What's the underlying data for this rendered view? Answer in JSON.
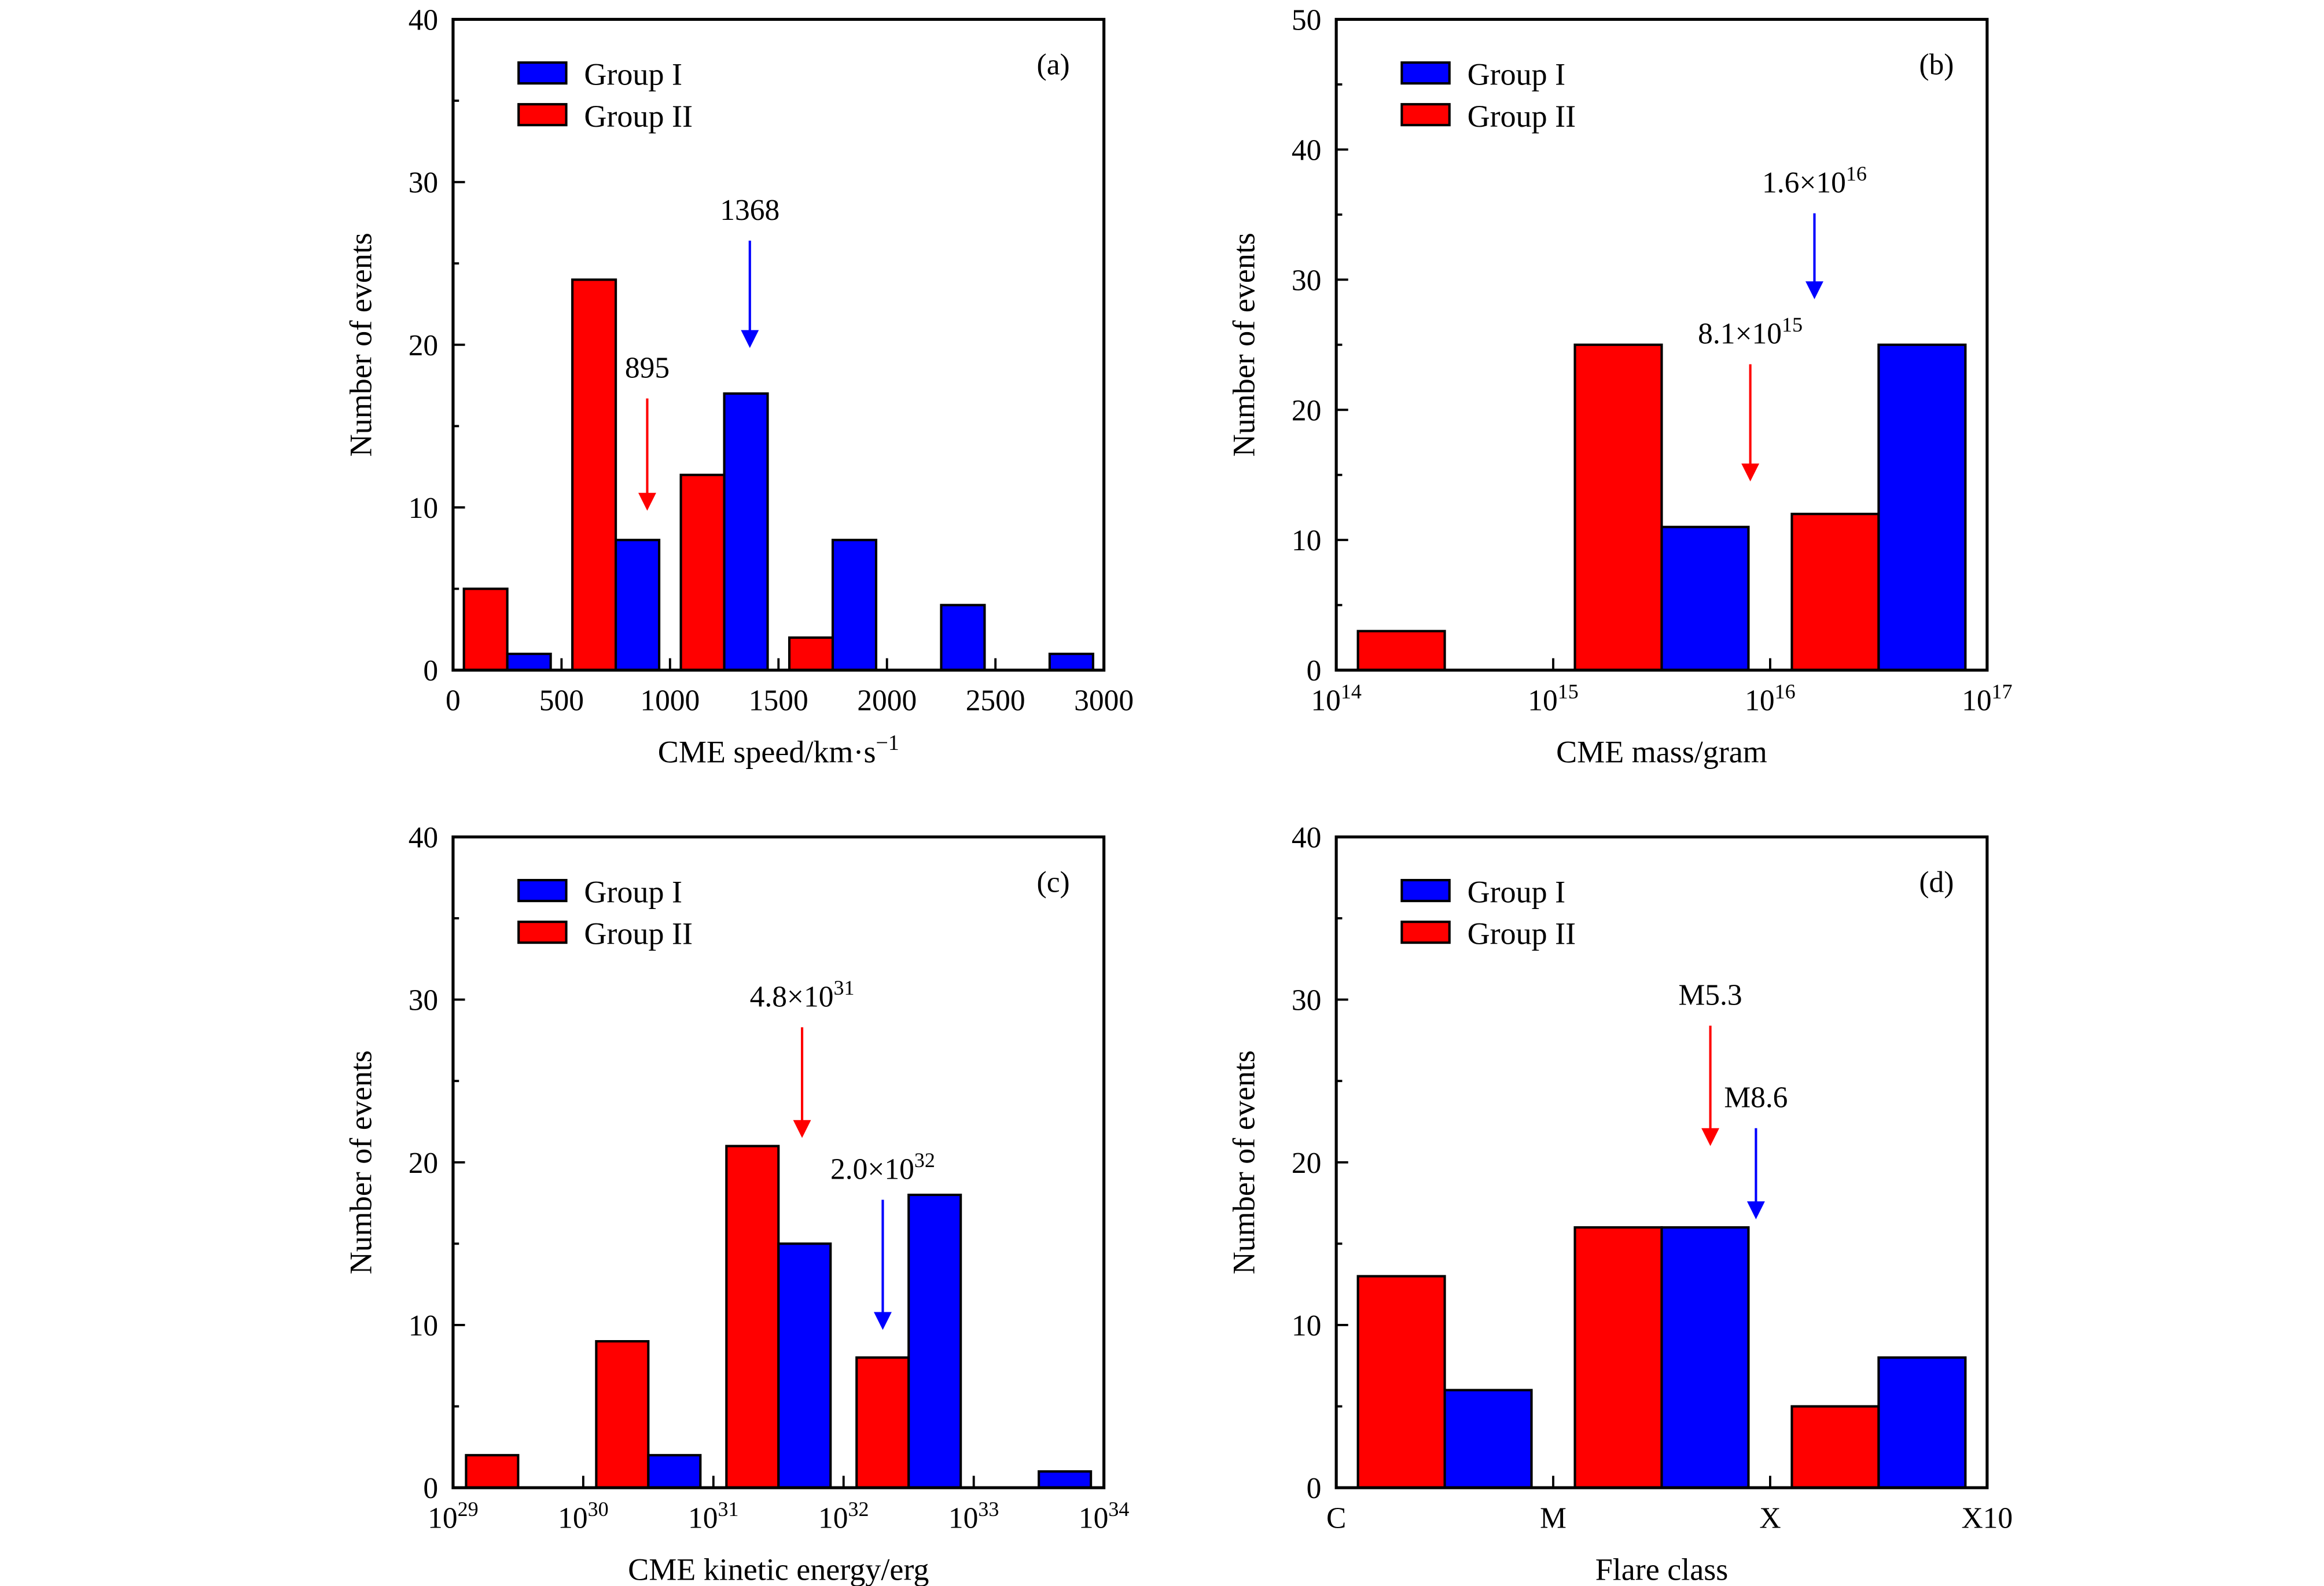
{
  "colors": {
    "group_i": "#0000ff",
    "group_ii": "#ff0000",
    "frame": "#000000"
  },
  "legend": {
    "group_i": "Group I",
    "group_ii": "Group II"
  },
  "chart_data": [
    {
      "panel": "(a)",
      "type": "bar",
      "xscale": "linear",
      "xlabel": "CME speed/km·s",
      "xlabel_sup": "−1",
      "ylabel": "Number of events",
      "xlim": [
        0,
        3000
      ],
      "ylim": [
        0,
        40
      ],
      "y_ticks": [
        0,
        10,
        20,
        30,
        40
      ],
      "y_minor": 5,
      "x_ticks": [
        {
          "value": 0,
          "label": "0"
        },
        {
          "value": 500,
          "label": "500"
        },
        {
          "value": 1000,
          "label": "1000"
        },
        {
          "value": 1500,
          "label": "1500"
        },
        {
          "value": 2000,
          "label": "2000"
        },
        {
          "value": 2500,
          "label": "2500"
        },
        {
          "value": 3000,
          "label": "3000"
        }
      ],
      "bins": [
        {
          "from": 0,
          "to": 500,
          "group_ii": 5,
          "group_i": 1
        },
        {
          "from": 500,
          "to": 1000,
          "group_ii": 24,
          "group_i": 8
        },
        {
          "from": 1000,
          "to": 1500,
          "group_ii": 12,
          "group_i": 17
        },
        {
          "from": 1500,
          "to": 2000,
          "group_ii": 2,
          "group_i": 8
        },
        {
          "from": 2000,
          "to": 2500,
          "group_ii": 0,
          "group_i": 4
        },
        {
          "from": 2500,
          "to": 3000,
          "group_ii": 0,
          "group_i": 1
        }
      ],
      "annotations": [
        {
          "group": "group_ii",
          "x": 895,
          "label": "895",
          "label_sup": "",
          "tip": 9.8,
          "tail": 16.7
        },
        {
          "group": "group_i",
          "x": 1368,
          "label": "1368",
          "label_sup": "",
          "tip": 19.8,
          "tail": 26.4
        }
      ]
    },
    {
      "panel": "(b)",
      "type": "bar",
      "xscale": "log",
      "xlabel": "CME mass/gram",
      "xlabel_sup": "",
      "ylabel": "Number of events",
      "xlim": [
        100000000000000.0,
        1e+17
      ],
      "ylim": [
        0,
        50
      ],
      "y_ticks": [
        0,
        10,
        20,
        30,
        40,
        50
      ],
      "y_minor": 5,
      "x_ticks": [
        {
          "value": 100000000000000.0,
          "label": "10",
          "sup": "14"
        },
        {
          "value": 1000000000000000.0,
          "label": "10",
          "sup": "15"
        },
        {
          "value": 1e+16,
          "label": "10",
          "sup": "16"
        },
        {
          "value": 1e+17,
          "label": "10",
          "sup": "17"
        }
      ],
      "bins": [
        {
          "from": 100000000000000.0,
          "to": 1000000000000000.0,
          "group_ii": 3,
          "group_i": 0
        },
        {
          "from": 1000000000000000.0,
          "to": 1e+16,
          "group_ii": 25,
          "group_i": 11
        },
        {
          "from": 1e+16,
          "to": 1e+17,
          "group_ii": 12,
          "group_i": 25
        }
      ],
      "annotations": [
        {
          "group": "group_i",
          "x": 1.6e+16,
          "label": "1.6×10",
          "label_sup": "16",
          "tip": 28.5,
          "tail": 35.1
        },
        {
          "group": "group_ii",
          "x": 8100000000000000.0,
          "label": "8.1×10",
          "label_sup": "15",
          "tip": 14.5,
          "tail": 23.5
        }
      ]
    },
    {
      "panel": "(c)",
      "type": "bar",
      "xscale": "log",
      "xlabel": "CME kinetic energy/erg",
      "xlabel_sup": "",
      "ylabel": "Number of events",
      "xlim": [
        1e+29,
        1e+34
      ],
      "ylim": [
        0,
        40
      ],
      "y_ticks": [
        0,
        10,
        20,
        30,
        40
      ],
      "y_minor": 5,
      "x_ticks": [
        {
          "value": 1e+29,
          "label": "10",
          "sup": "29"
        },
        {
          "value": 1e+30,
          "label": "10",
          "sup": "30"
        },
        {
          "value": 1e+31,
          "label": "10",
          "sup": "31"
        },
        {
          "value": 1e+32,
          "label": "10",
          "sup": "32"
        },
        {
          "value": 1e+33,
          "label": "10",
          "sup": "33"
        },
        {
          "value": 1e+34,
          "label": "10",
          "sup": "34"
        }
      ],
      "bins": [
        {
          "from": 1e+29,
          "to": 1e+30,
          "group_ii": 2,
          "group_i": 0
        },
        {
          "from": 1e+30,
          "to": 1e+31,
          "group_ii": 9,
          "group_i": 2
        },
        {
          "from": 1e+31,
          "to": 1e+32,
          "group_ii": 21,
          "group_i": 15
        },
        {
          "from": 1e+32,
          "to": 1e+33,
          "group_ii": 8,
          "group_i": 18
        },
        {
          "from": 1e+33,
          "to": 1e+34,
          "group_ii": 0,
          "group_i": 1
        }
      ],
      "annotations": [
        {
          "group": "group_ii",
          "x": 4.8e+31,
          "label": "4.8×10",
          "label_sup": "31",
          "tip": 21.5,
          "tail": 28.3
        },
        {
          "group": "group_i",
          "x": 2e+32,
          "label": "2.0×10",
          "label_sup": "32",
          "tip": 9.7,
          "tail": 17.7
        }
      ]
    },
    {
      "panel": "(d)",
      "type": "bar",
      "xscale": "flare-class",
      "xlabel": "Flare class",
      "xlabel_sup": "",
      "ylabel": "Number of events",
      "xlim": [
        "C",
        "X10"
      ],
      "ylim": [
        0,
        40
      ],
      "y_ticks": [
        0,
        10,
        20,
        30,
        40
      ],
      "y_minor": 5,
      "x_ticks": [
        {
          "value": "C",
          "label": "C"
        },
        {
          "value": "M",
          "label": "M"
        },
        {
          "value": "X",
          "label": "X"
        },
        {
          "value": "X10",
          "label": "X10"
        }
      ],
      "bins": [
        {
          "from": "C",
          "to": "M",
          "group_ii": 13,
          "group_i": 6
        },
        {
          "from": "M",
          "to": "X",
          "group_ii": 16,
          "group_i": 16
        },
        {
          "from": "X",
          "to": "X10",
          "group_ii": 5,
          "group_i": 8
        }
      ],
      "annotations": [
        {
          "group": "group_ii",
          "x": "M5.3",
          "label": "M5.3",
          "label_sup": "",
          "tip": 21.0,
          "tail": 28.4
        },
        {
          "group": "group_i",
          "x": "M8.6",
          "label": "M8.6",
          "label_sup": "",
          "tip": 16.5,
          "tail": 22.1
        }
      ]
    }
  ]
}
